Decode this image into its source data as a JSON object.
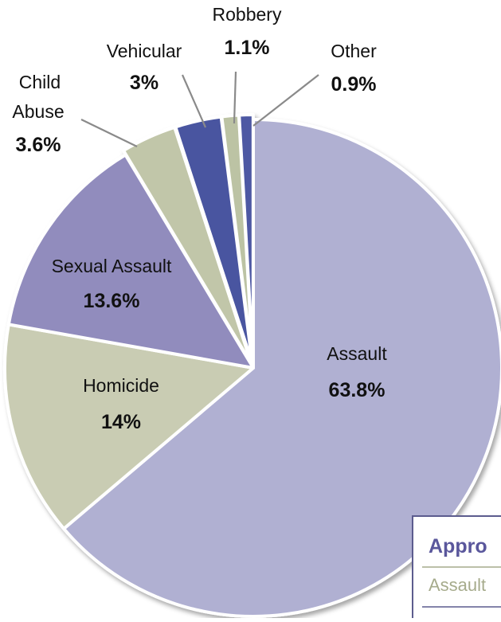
{
  "chart_data": {
    "type": "pie",
    "title": "",
    "slices": [
      {
        "name": "Assault",
        "value": 63.8,
        "value_label": "63.8%",
        "color": "#b0b0d2"
      },
      {
        "name": "Homicide",
        "value": 14.0,
        "value_label": "14%",
        "color": "#c9ccb3"
      },
      {
        "name": "Sexual Assault",
        "value": 13.6,
        "value_label": "13.6%",
        "color": "#918cbd"
      },
      {
        "name": "Child Abuse",
        "value": 3.6,
        "value_label": "3.6%",
        "color": "#c1c6a9"
      },
      {
        "name": "Vehicular",
        "value": 3.0,
        "value_label": "3%",
        "color": "#4a54a0"
      },
      {
        "name": "Robbery",
        "value": 1.1,
        "value_label": "1.1%",
        "color": "#bcc3a4"
      },
      {
        "name": "Other",
        "value": 0.9,
        "value_label": "0.9%",
        "color": "#4d58a3"
      }
    ],
    "legend": {
      "title": "Appro",
      "items": [
        "Assault"
      ],
      "title_color": "#5a579c",
      "item_color": "#a6ab8c",
      "border_color": "#5c5c8e"
    }
  }
}
